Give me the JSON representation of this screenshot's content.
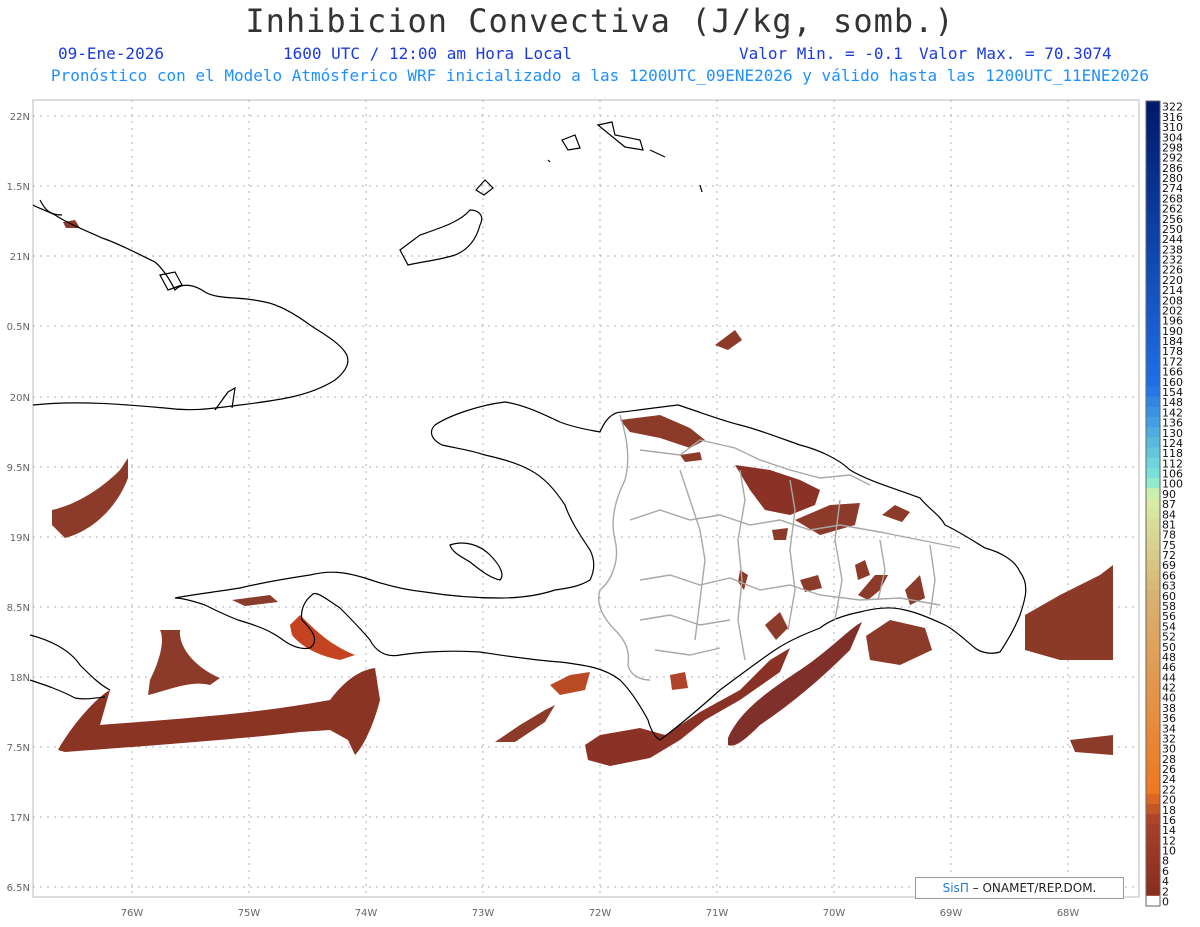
{
  "header": {
    "title": "Inhibicion Convectiva (J/kg, somb.)",
    "date": "09-Ene-2026",
    "time": "1600 UTC / 12:00 am Hora Local",
    "min_label": "Valor Min. = -0.1",
    "max_label": "Valor Max. = 70.3074",
    "subtitle": "Pronóstico con el Modelo Atmósferico WRF inicializado a las 1200UTC_09ENE2026 y válido hasta las  1200UTC_11ENE2026"
  },
  "axes": {
    "lat_labels": [
      "22N",
      "1.5N",
      "21N",
      "0.5N",
      "20N",
      "9.5N",
      "19N",
      "8.5N",
      "18N",
      "7.5N",
      "17N",
      "6.5N"
    ],
    "lon_labels": [
      "76W",
      "75W",
      "74W",
      "73W",
      "72W",
      "71W",
      "70W",
      "69W",
      "68W"
    ]
  },
  "colorbar": {
    "labels": [
      "322",
      "316",
      "310",
      "304",
      "298",
      "292",
      "286",
      "280",
      "274",
      "268",
      "262",
      "256",
      "250",
      "244",
      "238",
      "232",
      "226",
      "220",
      "214",
      "208",
      "202",
      "196",
      "190",
      "184",
      "178",
      "172",
      "166",
      "160",
      "154",
      "148",
      "142",
      "136",
      "130",
      "124",
      "118",
      "112",
      "106",
      "100",
      "90",
      "87",
      "84",
      "81",
      "78",
      "75",
      "72",
      "69",
      "66",
      "63",
      "60",
      "58",
      "56",
      "54",
      "52",
      "50",
      "48",
      "46",
      "44",
      "42",
      "40",
      "38",
      "36",
      "34",
      "32",
      "30",
      "28",
      "26",
      "24",
      "22",
      "20",
      "18",
      "16",
      "14",
      "12",
      "10",
      "8",
      "6",
      "4",
      "2",
      "0"
    ],
    "colors": {
      "dark_blue": "#001a6e",
      "blue": "#1e6fe8",
      "cyan": "#7fe8d8",
      "light_green": "#d8f0a8",
      "tan": "#d8b070",
      "orange": "#f07820",
      "brown": "#8c2e1e",
      "white": "#ffffff"
    }
  },
  "credit": {
    "sis": "SisΠ",
    "text": " – ONAMET/REP.DOM."
  },
  "colors": {
    "title": "#333333",
    "blue_text": "#1a3ae0",
    "cyan_text": "#1e90ff",
    "shading": "#8c3a2a",
    "coast": "#000000",
    "provinces": "#aaaaaa"
  }
}
